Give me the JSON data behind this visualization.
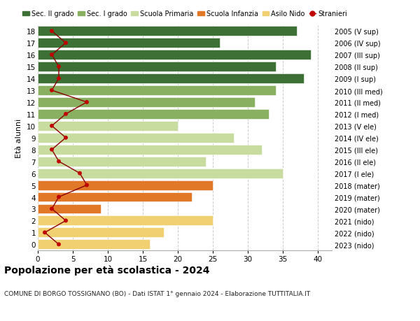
{
  "ages": [
    0,
    1,
    2,
    3,
    4,
    5,
    6,
    7,
    8,
    9,
    10,
    11,
    12,
    13,
    14,
    15,
    16,
    17,
    18
  ],
  "right_labels": [
    "2023 (nido)",
    "2022 (nido)",
    "2021 (nido)",
    "2020 (mater)",
    "2019 (mater)",
    "2018 (mater)",
    "2017 (I ele)",
    "2016 (II ele)",
    "2015 (III ele)",
    "2014 (IV ele)",
    "2013 (V ele)",
    "2012 (I med)",
    "2011 (II med)",
    "2010 (III med)",
    "2009 (I sup)",
    "2008 (II sup)",
    "2007 (III sup)",
    "2006 (IV sup)",
    "2005 (V sup)"
  ],
  "bar_values": [
    16,
    18,
    25,
    9,
    22,
    25,
    35,
    24,
    32,
    28,
    20,
    33,
    31,
    34,
    38,
    34,
    39,
    26,
    37
  ],
  "bar_colors": [
    "#f0d070",
    "#f0d070",
    "#f0d070",
    "#e07828",
    "#e07828",
    "#e07828",
    "#c8dca0",
    "#c8dca0",
    "#c8dca0",
    "#c8dca0",
    "#c8dca0",
    "#88b060",
    "#88b060",
    "#88b060",
    "#3d7035",
    "#3d7035",
    "#3d7035",
    "#3d7035",
    "#3d7035"
  ],
  "stranieri_values": [
    3,
    1,
    4,
    2,
    3,
    7,
    6,
    3,
    2,
    4,
    2,
    4,
    7,
    2,
    3,
    3,
    2,
    4,
    2
  ],
  "legend_labels": [
    "Sec. II grado",
    "Sec. I grado",
    "Scuola Primaria",
    "Scuola Infanzia",
    "Asilo Nido",
    "Stranieri"
  ],
  "legend_colors": [
    "#3d7035",
    "#88b060",
    "#c8dca0",
    "#e07828",
    "#f0d070",
    "#c00000"
  ],
  "title": "Popolazione per età scolastica - 2024",
  "subtitle": "COMUNE DI BORGO TOSSIGNANO (BO) - Dati ISTAT 1° gennaio 2024 - Elaborazione TUTTITALIA.IT",
  "ylabel": "Età alunni",
  "xlim": [
    0,
    42
  ],
  "xticks": [
    0,
    5,
    10,
    15,
    20,
    25,
    30,
    35,
    40
  ],
  "bg_color": "#ffffff",
  "grid_color": "#cccccc",
  "bar_height": 0.82
}
